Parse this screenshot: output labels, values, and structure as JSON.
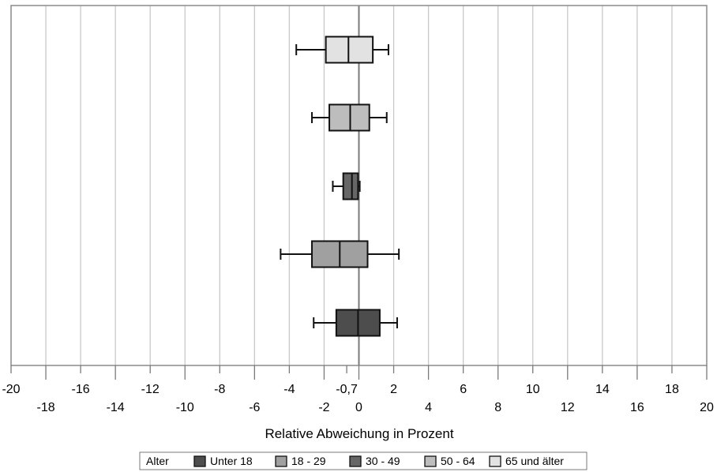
{
  "chart_data": {
    "type": "boxplot",
    "orientation": "horizontal",
    "xlabel": "Relative Abweichung in Prozent",
    "xlim": [
      -20,
      20
    ],
    "x_tick_labels_row1": [
      "-20",
      "-16",
      "-12",
      "-8",
      "-4",
      "-0,7",
      "2",
      "6",
      "10",
      "14",
      "18"
    ],
    "x_tick_values_row1": [
      -20,
      -16,
      -12,
      -8,
      -4,
      -0.7,
      2,
      6,
      10,
      14,
      18
    ],
    "x_tick_labels_row2": [
      "-18",
      "-14",
      "-10",
      "-6",
      "-2",
      "0",
      "4",
      "8",
      "12",
      "16",
      "20"
    ],
    "x_tick_values_row2": [
      -18,
      -14,
      -10,
      -6,
      -2,
      0,
      4,
      8,
      12,
      16,
      20
    ],
    "grid_values": [
      -18,
      -16,
      -14,
      -12,
      -10,
      -8,
      -6,
      -4,
      -2,
      2,
      4,
      6,
      8,
      10,
      12,
      14,
      16,
      18
    ],
    "grid": true,
    "reference_line": 0,
    "legend": {
      "title": "Alter",
      "placement": "bottom",
      "entries": [
        {
          "label": "Unter 18",
          "color": "#4d4d4d"
        },
        {
          "label": "18 - 29",
          "color": "#a0a0a0"
        },
        {
          "label": "30 - 49",
          "color": "#666666"
        },
        {
          "label": "50 - 64",
          "color": "#bdbdbd"
        },
        {
          "label": "65 und älter",
          "color": "#e2e2e2"
        }
      ]
    },
    "series": [
      {
        "name": "65 und älter",
        "color": "#e2e2e2",
        "min": -3.6,
        "q1": -1.9,
        "median": -0.6,
        "q3": 0.8,
        "max": 1.7
      },
      {
        "name": "50 - 64",
        "color": "#bdbdbd",
        "min": -2.7,
        "q1": -1.7,
        "median": -0.5,
        "q3": 0.6,
        "max": 1.6
      },
      {
        "name": "30 - 49",
        "color": "#666666",
        "min": -1.5,
        "q1": -0.9,
        "median": -0.4,
        "q3": -0.05,
        "max": 0.05
      },
      {
        "name": "18 - 29",
        "color": "#a0a0a0",
        "min": -4.5,
        "q1": -2.7,
        "median": -1.1,
        "q3": 0.5,
        "max": 2.3
      },
      {
        "name": "Unter 18",
        "color": "#4d4d4d",
        "min": -2.6,
        "q1": -1.3,
        "median": -0.05,
        "q3": 1.2,
        "max": 2.2
      }
    ]
  }
}
